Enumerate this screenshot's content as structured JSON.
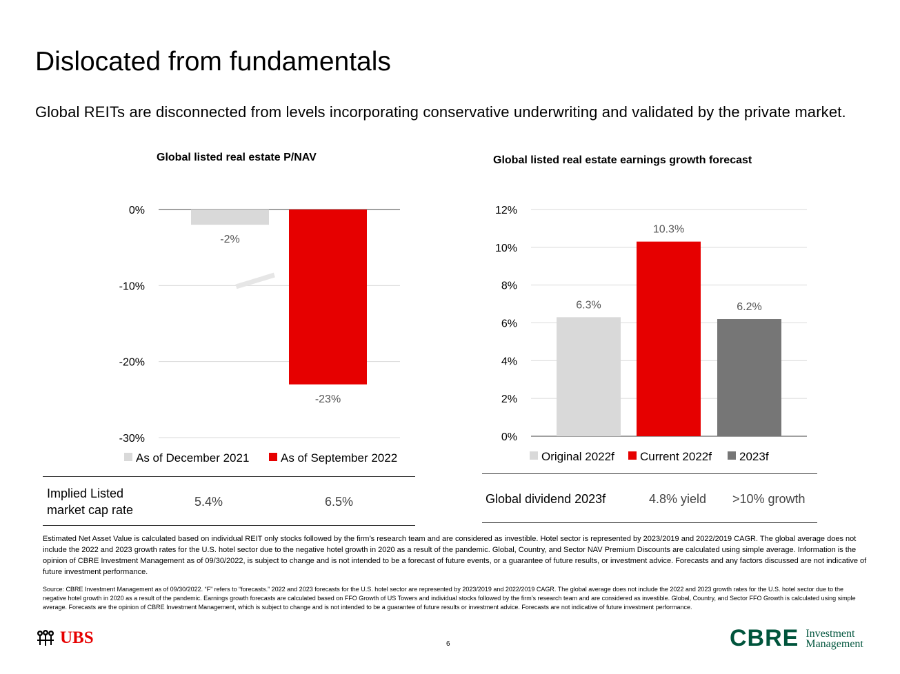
{
  "title": "Dislocated from fundamentals",
  "subtitle": "Global REITs are disconnected from levels incorporating conservative underwriting and validated by the private market.",
  "chart_data": [
    {
      "type": "bar",
      "title": "Global listed real estate P/NAV",
      "categories": [
        ""
      ],
      "series": [
        {
          "name": "As of December 2021",
          "values": [
            -2
          ],
          "color": "#d9d9d9",
          "label": "-2%"
        },
        {
          "name": "As of September 2022",
          "values": [
            -23
          ],
          "color": "#e60000",
          "label": "-23%"
        }
      ],
      "yticks": [
        "0%",
        "-10%",
        "-20%",
        "-30%"
      ],
      "ylim": [
        -30,
        0
      ],
      "xlabel": "",
      "ylabel": "",
      "grid": true,
      "legend": "bottom"
    },
    {
      "type": "bar",
      "title": "Global listed real estate earnings growth forecast",
      "categories": [
        "Original 2022f",
        "Current 2022f",
        "2023f"
      ],
      "values": [
        6.3,
        10.3,
        6.2
      ],
      "labels": [
        "6.3%",
        "10.3%",
        "6.2%"
      ],
      "colors": [
        "#d9d9d9",
        "#e60000",
        "#767676"
      ],
      "yticks": [
        "12%",
        "10%",
        "8%",
        "6%",
        "4%",
        "2%",
        "0%"
      ],
      "ylim": [
        0,
        12
      ],
      "xlabel": "",
      "ylabel": "",
      "grid": true,
      "legend": "bottom"
    }
  ],
  "left_table": {
    "label": "Implied Listed market cap rate",
    "values": [
      "5.4%",
      "6.5%"
    ]
  },
  "right_table": {
    "label": "Global dividend 2023f",
    "yield": "4.8% yield",
    "growth": ">10% growth"
  },
  "disclaimer": "Estimated Net Asset Value is calculated based on individual REIT only stocks followed by the firm’s research team and are considered as investible. Hotel sector is represented by 2023/2019 and 2022/2019 CAGR. The global average does not include the 2022 and 2023 growth rates for the U.S. hotel sector due to the negative hotel growth in 2020 as a result of the pandemic. Global, Country, and Sector NAV Premium Discounts are calculated using simple average. Information is the opinion of CBRE Investment Management as of 09/30/2022, is subject to change and is not intended to be a forecast of future events, or a guarantee of future results, or investment advice. Forecasts and any factors discussed are not indicative of future investment performance.",
  "source": "Source: CBRE Investment Management as of 09/30/2022. “F” refers to “forecasts.” 2022 and 2023 forecasts for the U.S. hotel sector are represented by 2023/2019 and 2022/2019 CAGR. The global average does not include the 2022 and 2023 growth rates for the U.S. hotel sector due to the negative hotel growth in 2020 as a result of the pandemic. Earnings growth forecasts are calculated based on FFO Growth of US Towers and individual stocks followed by the firm’s research team and are considered as investible. Global, Country, and Sector FFO Growth is calculated using simple average. Forecasts are the opinion of CBRE Investment Management, which is subject to change and is not intended to be a guarantee of future results or investment advice. Forecasts are not indicative of future investment performance.",
  "page_number": "6",
  "logos": {
    "ubs": "UBS",
    "cbre": "CBRE",
    "cbre_line1": "Investment",
    "cbre_line2": "Management"
  },
  "colors": {
    "red": "#e60000",
    "light_gray": "#d9d9d9",
    "dark_gray": "#767676",
    "cbre_green": "#00543c"
  }
}
